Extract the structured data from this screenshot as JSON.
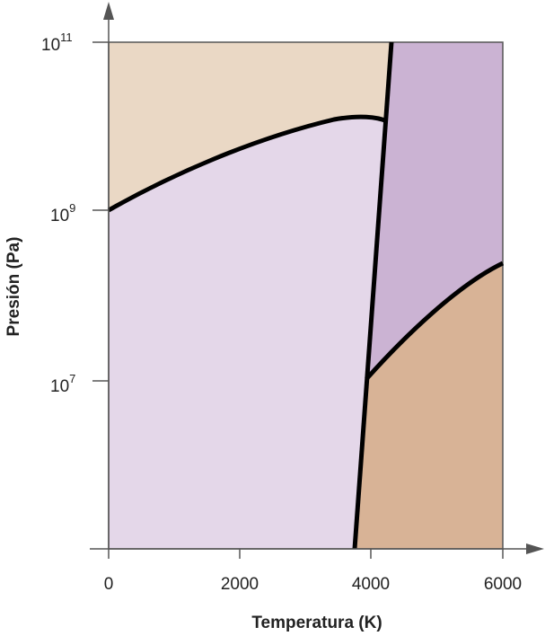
{
  "chart_data": {
    "type": "phase-diagram",
    "xlabel": "Temperatura (K)",
    "ylabel": "Presión (Pa)",
    "x_ticks": [
      "0",
      "2000",
      "4000",
      "6000"
    ],
    "y_ticks": [
      {
        "base": "10",
        "exp": "11"
      },
      {
        "base": "10",
        "exp": "9"
      },
      {
        "base": "10",
        "exp": "7"
      }
    ],
    "y_scale": "log",
    "regions": [
      {
        "color": "#ead8c5"
      },
      {
        "color": "#e4d7e9"
      },
      {
        "color": "#cbb3d3"
      },
      {
        "color": "#d8b396"
      }
    ],
    "boundary_color": "#000000"
  }
}
